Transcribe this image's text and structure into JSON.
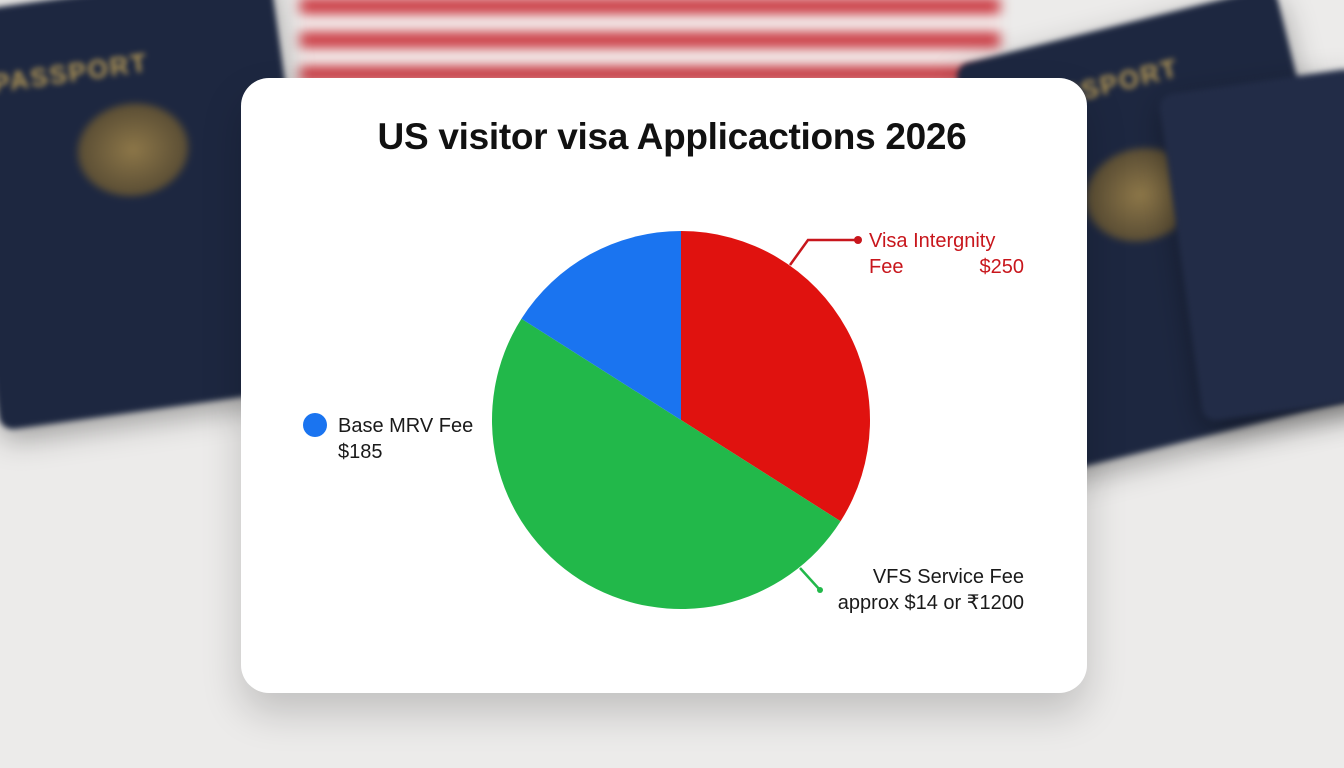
{
  "background": {
    "passport_texts": [
      "PASSPORT",
      "PASSPORT"
    ]
  },
  "chart_data": {
    "type": "pie",
    "title": "US visitor visa Applicactions 2026",
    "slices": [
      {
        "label_line1": "Visa Intergnity",
        "label_line2a": "Fee",
        "label_line2b": "$250",
        "share_percent": 34,
        "color": "#e0120f"
      },
      {
        "label_line1": "VFS Service Fee",
        "label_line2": "approx $14 or ₹1200",
        "share_percent": 50,
        "color": "#22b84a"
      },
      {
        "label_line1": "Base MRV Fee",
        "label_line2": "$185",
        "share_percent": 16,
        "color": "#1a74f0"
      }
    ],
    "legend_marker_color": "#1a74f0"
  }
}
